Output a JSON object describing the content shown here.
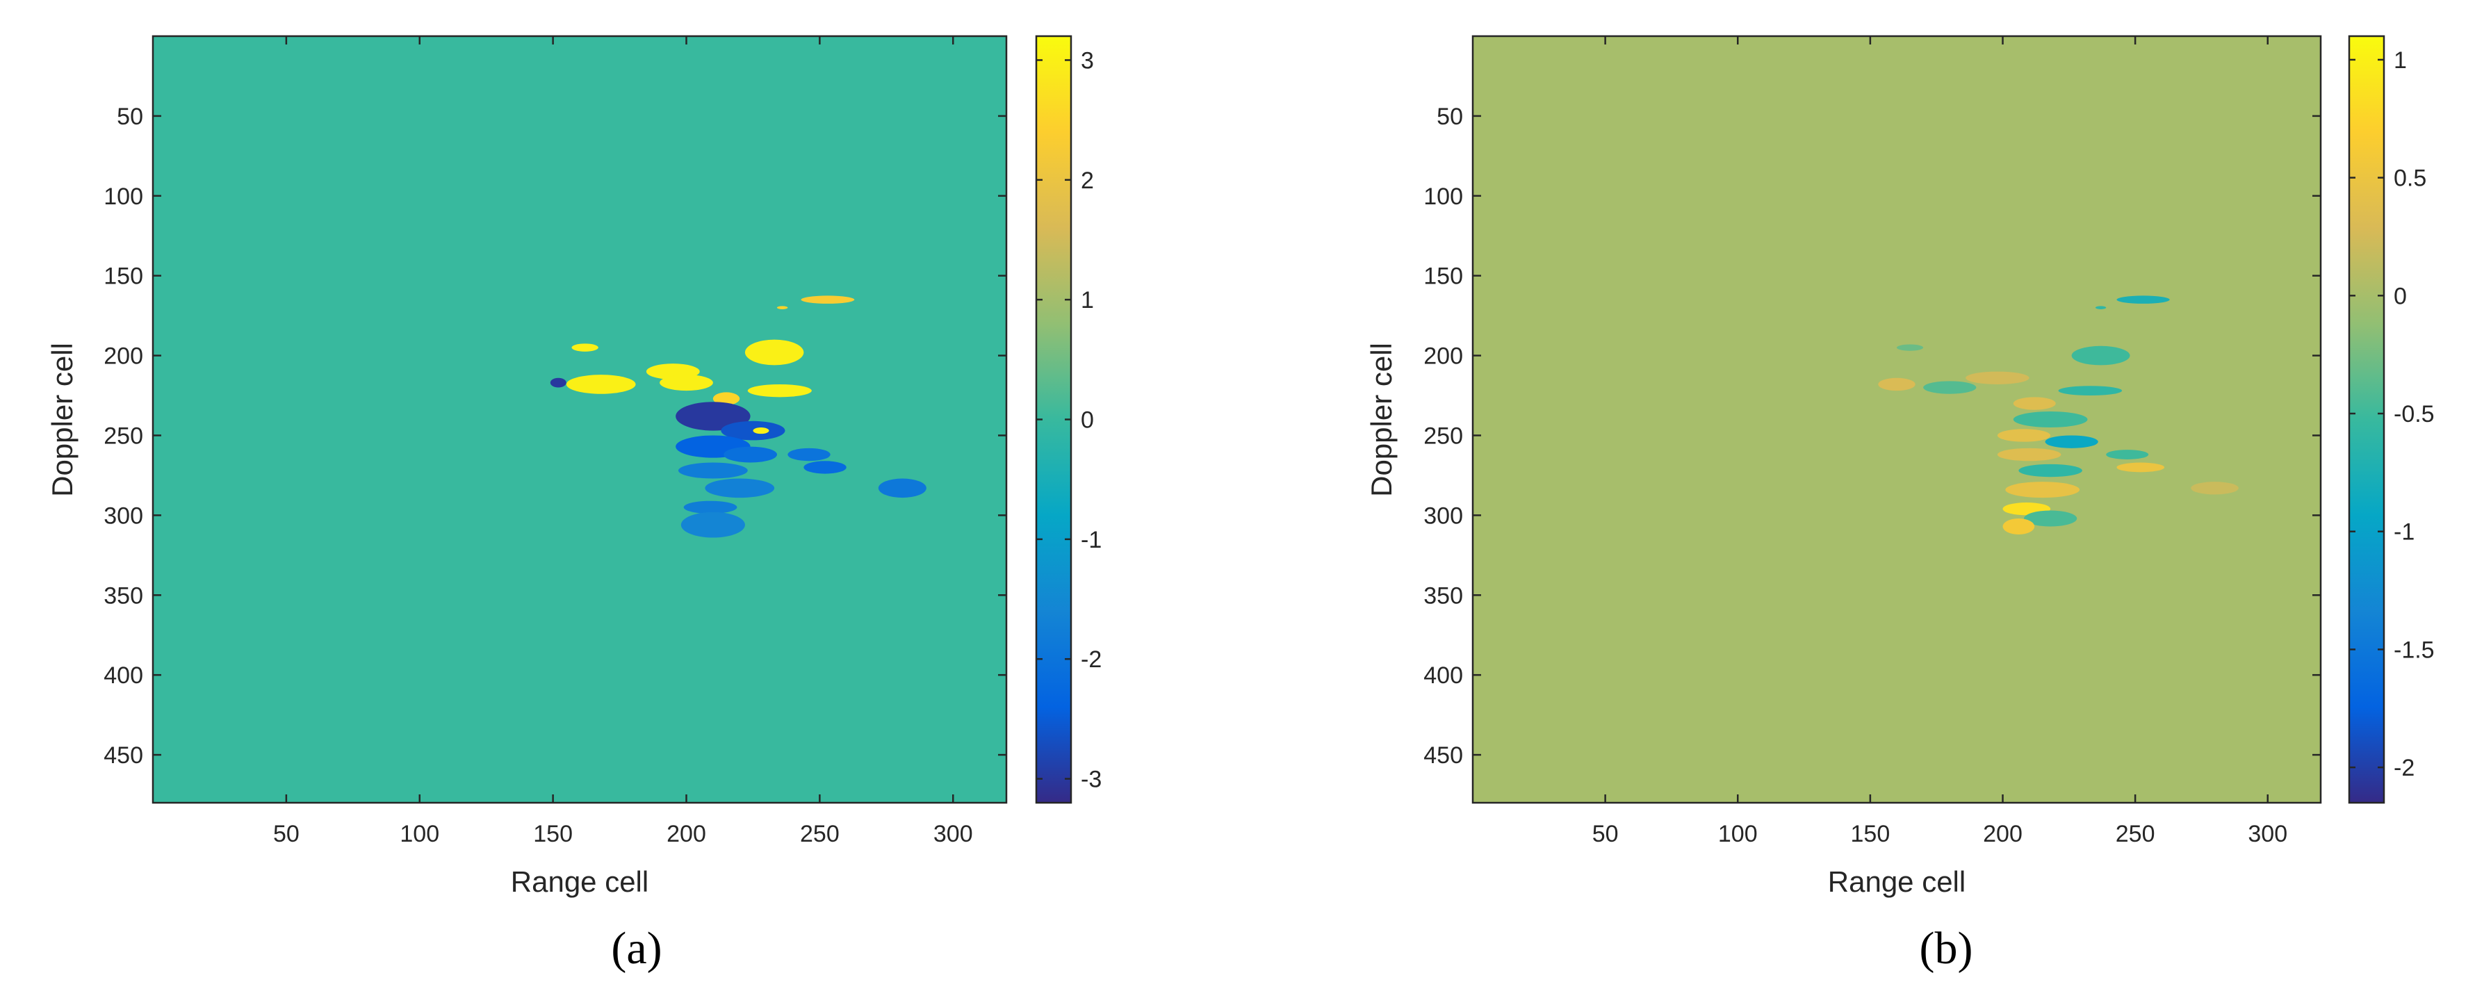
{
  "chart_data": [
    {
      "type": "heatmap",
      "panel_label": "(a)",
      "xlabel": "Range cell",
      "ylabel": "Doppler cell",
      "xlim": [
        0,
        320
      ],
      "ylim": [
        480,
        0
      ],
      "xticks": [
        50,
        100,
        150,
        200,
        250,
        300
      ],
      "yticks": [
        50,
        100,
        150,
        200,
        250,
        300,
        350,
        400,
        450
      ],
      "background_value": 0,
      "colorbar": {
        "min": -3.2,
        "max": 3.2,
        "ticks": [
          -3,
          -2,
          -1,
          0,
          1,
          2,
          3
        ],
        "colormap": "parula"
      },
      "regions": [
        {
          "x": 253,
          "y": 165,
          "rx": 10,
          "ry": 2.5,
          "value": 2.3
        },
        {
          "x": 236,
          "y": 170,
          "rx": 2,
          "ry": 1,
          "value": 2.5
        },
        {
          "x": 162,
          "y": 195,
          "rx": 5,
          "ry": 2.5,
          "value": 3.0
        },
        {
          "x": 233,
          "y": 198,
          "rx": 11,
          "ry": 8,
          "value": 3.0
        },
        {
          "x": 195,
          "y": 210,
          "rx": 10,
          "ry": 5,
          "value": 3.0
        },
        {
          "x": 168,
          "y": 218,
          "rx": 13,
          "ry": 6,
          "value": 3.0
        },
        {
          "x": 200,
          "y": 217,
          "rx": 10,
          "ry": 5,
          "value": 3.0
        },
        {
          "x": 152,
          "y": 217,
          "rx": 3,
          "ry": 3,
          "value": -3.0
        },
        {
          "x": 235,
          "y": 222,
          "rx": 12,
          "ry": 4,
          "value": 3.0
        },
        {
          "x": 215,
          "y": 227,
          "rx": 5,
          "ry": 4,
          "value": 2.5
        },
        {
          "x": 210,
          "y": 238,
          "rx": 14,
          "ry": 9,
          "value": -3.0
        },
        {
          "x": 225,
          "y": 247,
          "rx": 12,
          "ry": 6,
          "value": -2.6
        },
        {
          "x": 228,
          "y": 247,
          "rx": 3,
          "ry": 2,
          "value": 3.0
        },
        {
          "x": 210,
          "y": 257,
          "rx": 14,
          "ry": 7,
          "value": -2.4
        },
        {
          "x": 224,
          "y": 262,
          "rx": 10,
          "ry": 5,
          "value": -2.1
        },
        {
          "x": 246,
          "y": 262,
          "rx": 8,
          "ry": 4,
          "value": -2.0
        },
        {
          "x": 210,
          "y": 272,
          "rx": 13,
          "ry": 5,
          "value": -1.8
        },
        {
          "x": 252,
          "y": 270,
          "rx": 8,
          "ry": 4,
          "value": -2.2
        },
        {
          "x": 281,
          "y": 283,
          "rx": 9,
          "ry": 6,
          "value": -1.9
        },
        {
          "x": 220,
          "y": 283,
          "rx": 13,
          "ry": 6,
          "value": -1.7
        },
        {
          "x": 209,
          "y": 295,
          "rx": 10,
          "ry": 4,
          "value": -1.8
        },
        {
          "x": 210,
          "y": 306,
          "rx": 12,
          "ry": 8,
          "value": -1.6
        }
      ]
    },
    {
      "type": "heatmap",
      "panel_label": "(b)",
      "xlabel": "Range cell",
      "ylabel": "Doppler cell",
      "xlim": [
        0,
        320
      ],
      "ylim": [
        480,
        0
      ],
      "xticks": [
        50,
        100,
        150,
        200,
        250,
        300
      ],
      "yticks": [
        50,
        100,
        150,
        200,
        250,
        300,
        350,
        400,
        450
      ],
      "background_value": 0,
      "colorbar": {
        "min": -2.15,
        "max": 1.1,
        "ticks": [
          -2,
          -1.5,
          -1,
          -0.5,
          0,
          0.5,
          1
        ],
        "tick_labels": [
          "-2",
          "-1.5",
          "-1",
          "-0.5",
          "0",
          "0.5",
          "1"
        ],
        "colormap": "parula"
      },
      "regions": [
        {
          "x": 253,
          "y": 165,
          "rx": 10,
          "ry": 2.5,
          "value": -0.75
        },
        {
          "x": 237,
          "y": 170,
          "rx": 2,
          "ry": 1,
          "value": -0.6
        },
        {
          "x": 165,
          "y": 195,
          "rx": 5,
          "ry": 2,
          "value": -0.3
        },
        {
          "x": 237,
          "y": 200,
          "rx": 11,
          "ry": 6,
          "value": -0.5
        },
        {
          "x": 160,
          "y": 218,
          "rx": 7,
          "ry": 4,
          "value": 0.3
        },
        {
          "x": 180,
          "y": 220,
          "rx": 10,
          "ry": 4,
          "value": -0.4
        },
        {
          "x": 198,
          "y": 214,
          "rx": 12,
          "ry": 4,
          "value": 0.25
        },
        {
          "x": 233,
          "y": 222,
          "rx": 12,
          "ry": 3,
          "value": -0.6
        },
        {
          "x": 212,
          "y": 230,
          "rx": 8,
          "ry": 4,
          "value": 0.35
        },
        {
          "x": 218,
          "y": 240,
          "rx": 14,
          "ry": 5,
          "value": -0.5
        },
        {
          "x": 208,
          "y": 250,
          "rx": 10,
          "ry": 4,
          "value": 0.4
        },
        {
          "x": 226,
          "y": 254,
          "rx": 10,
          "ry": 4,
          "value": -0.9
        },
        {
          "x": 210,
          "y": 262,
          "rx": 12,
          "ry": 4,
          "value": 0.35
        },
        {
          "x": 247,
          "y": 262,
          "rx": 8,
          "ry": 3,
          "value": -0.5
        },
        {
          "x": 252,
          "y": 270,
          "rx": 9,
          "ry": 3,
          "value": 0.5
        },
        {
          "x": 218,
          "y": 272,
          "rx": 12,
          "ry": 4,
          "value": -0.6
        },
        {
          "x": 280,
          "y": 283,
          "rx": 9,
          "ry": 4,
          "value": 0.2
        },
        {
          "x": 215,
          "y": 284,
          "rx": 14,
          "ry": 5,
          "value": 0.45
        },
        {
          "x": 209,
          "y": 296,
          "rx": 9,
          "ry": 4,
          "value": 0.85
        },
        {
          "x": 218,
          "y": 302,
          "rx": 10,
          "ry": 5,
          "value": -0.45
        },
        {
          "x": 206,
          "y": 307,
          "rx": 6,
          "ry": 5,
          "value": 0.6
        }
      ]
    }
  ]
}
